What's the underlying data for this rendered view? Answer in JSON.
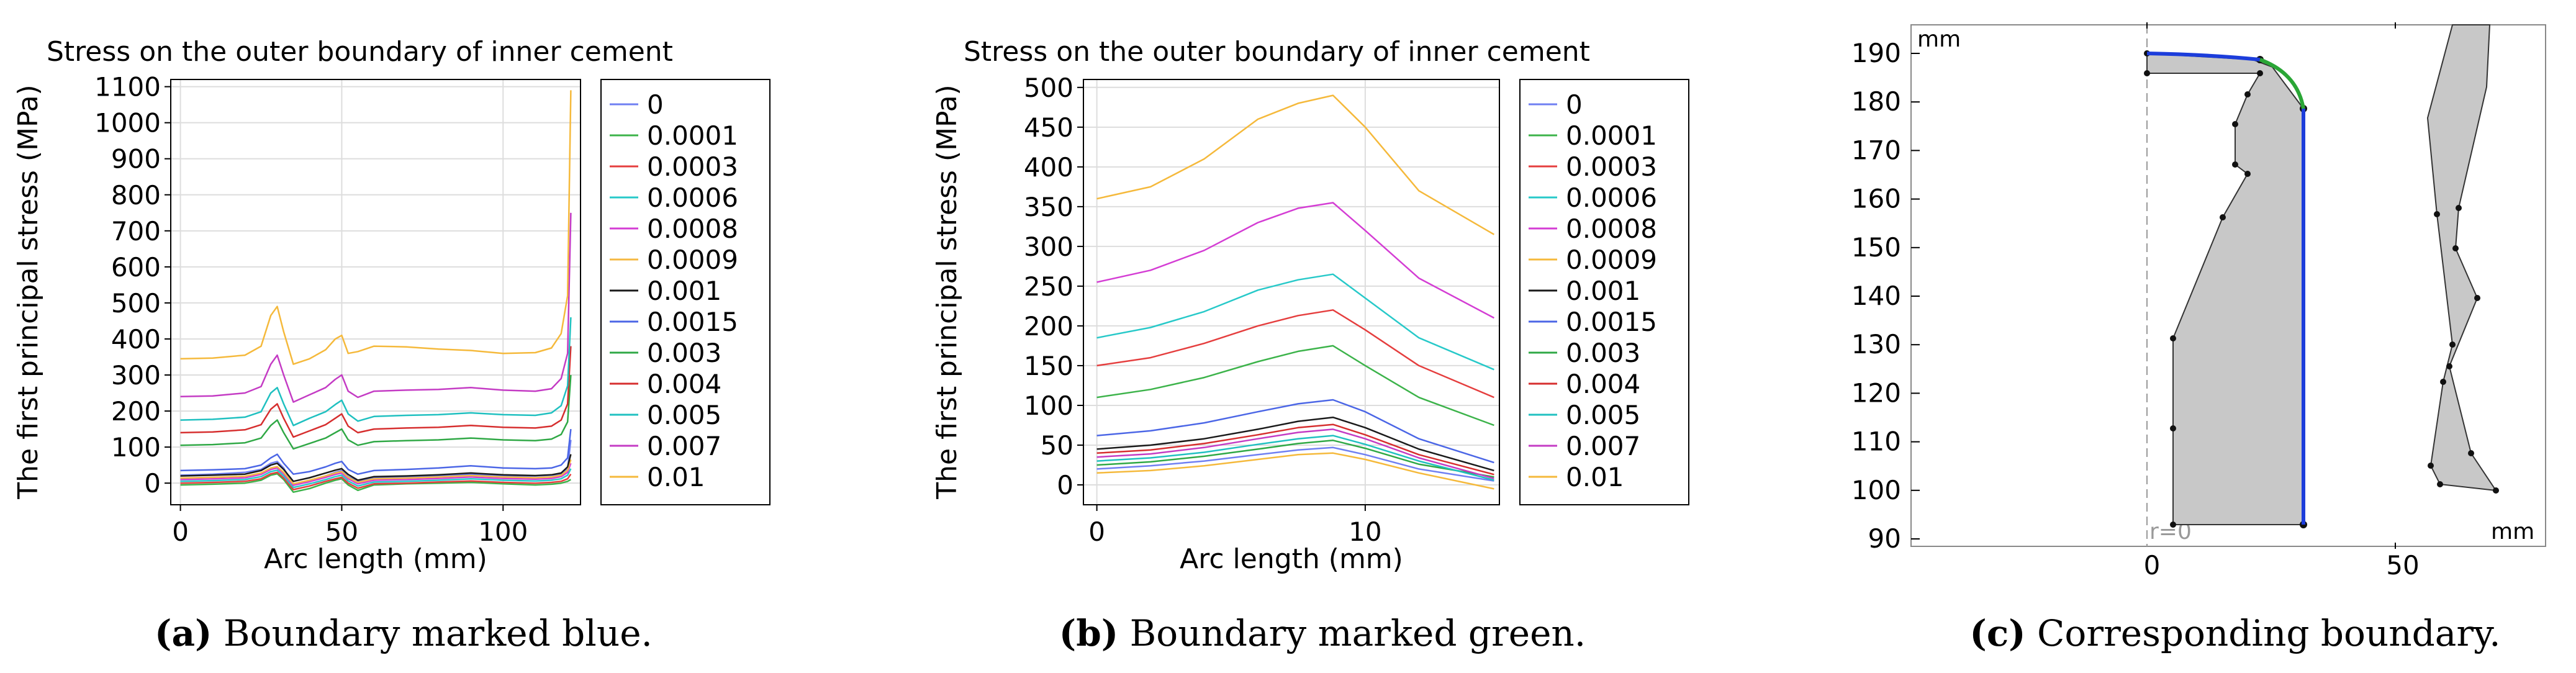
{
  "chart_data": [
    {
      "type": "line",
      "title": "Stress on the outer boundary of inner cement",
      "xlabel": "Arc length (mm)",
      "ylabel": "The first principal stress (MPa)",
      "xlim": [
        -3,
        124
      ],
      "ylim": [
        -60,
        1120
      ],
      "xticks": [
        0,
        50,
        100
      ],
      "yticks": [
        0,
        100,
        200,
        300,
        400,
        500,
        600,
        700,
        800,
        900,
        1000,
        1100
      ],
      "grid": true,
      "legend_position": "right",
      "x": [
        0,
        10,
        20,
        25,
        28,
        30,
        32,
        35,
        40,
        45,
        48,
        50,
        52,
        55,
        60,
        70,
        80,
        90,
        100,
        110,
        115,
        118,
        120,
        121
      ],
      "series": [
        {
          "name": "0",
          "color": "#6f7ff2",
          "values": [
            22,
            25,
            30,
            38,
            55,
            60,
            42,
            -5,
            5,
            20,
            30,
            35,
            18,
            5,
            15,
            18,
            20,
            25,
            20,
            20,
            22,
            25,
            40,
            120
          ]
        },
        {
          "name": "0.0001",
          "color": "#3cb34a",
          "values": [
            -5,
            -3,
            0,
            8,
            22,
            26,
            10,
            -25,
            -15,
            0,
            8,
            12,
            -5,
            -20,
            -5,
            -2,
            0,
            2,
            -2,
            -5,
            -3,
            0,
            5,
            10
          ]
        },
        {
          "name": "0.0003",
          "color": "#e53e3e",
          "values": [
            0,
            2,
            5,
            12,
            26,
            30,
            14,
            -18,
            -8,
            5,
            12,
            16,
            0,
            -14,
            -2,
            0,
            3,
            6,
            2,
            0,
            2,
            5,
            12,
            25
          ]
        },
        {
          "name": "0.0006",
          "color": "#27c9c9",
          "values": [
            5,
            7,
            10,
            18,
            32,
            36,
            20,
            -12,
            -2,
            10,
            18,
            22,
            6,
            -8,
            3,
            5,
            8,
            12,
            8,
            6,
            8,
            12,
            22,
            40
          ]
        },
        {
          "name": "0.0008",
          "color": "#d43dd4",
          "values": [
            10,
            12,
            15,
            24,
            38,
            42,
            26,
            -6,
            4,
            16,
            24,
            28,
            12,
            -2,
            8,
            10,
            13,
            17,
            13,
            11,
            13,
            18,
            30,
            55
          ]
        },
        {
          "name": "0.0009",
          "color": "#f4b842",
          "values": [
            14,
            16,
            19,
            28,
            42,
            46,
            30,
            -2,
            8,
            20,
            28,
            32,
            16,
            2,
            12,
            14,
            17,
            21,
            17,
            15,
            17,
            22,
            36,
            65
          ]
        },
        {
          "name": "0.001",
          "color": "#1a1a1a",
          "values": [
            20,
            22,
            25,
            35,
            50,
            55,
            38,
            5,
            15,
            28,
            36,
            40,
            24,
            8,
            18,
            20,
            23,
            28,
            23,
            21,
            23,
            28,
            45,
            80
          ]
        },
        {
          "name": "0.0015",
          "color": "#4b66e6",
          "values": [
            35,
            37,
            40,
            50,
            70,
            80,
            55,
            25,
            32,
            45,
            55,
            60,
            38,
            25,
            35,
            38,
            42,
            48,
            42,
            40,
            42,
            50,
            70,
            150
          ]
        },
        {
          "name": "0.003",
          "color": "#2fa845",
          "values": [
            105,
            107,
            112,
            125,
            160,
            175,
            140,
            95,
            110,
            125,
            140,
            150,
            120,
            105,
            115,
            118,
            120,
            125,
            120,
            118,
            122,
            135,
            170,
            300
          ]
        },
        {
          "name": "0.004",
          "color": "#d62e2e",
          "values": [
            140,
            142,
            148,
            162,
            205,
            220,
            180,
            128,
            145,
            162,
            180,
            192,
            158,
            140,
            150,
            153,
            155,
            160,
            155,
            153,
            158,
            175,
            220,
            380
          ]
        },
        {
          "name": "0.005",
          "color": "#1fc0c0",
          "values": [
            175,
            177,
            183,
            198,
            250,
            265,
            220,
            160,
            180,
            198,
            218,
            230,
            192,
            172,
            185,
            188,
            190,
            195,
            190,
            188,
            195,
            215,
            270,
            460
          ]
        },
        {
          "name": "0.007",
          "color": "#c43bc4",
          "values": [
            240,
            242,
            250,
            268,
            330,
            355,
            300,
            225,
            245,
            265,
            288,
            300,
            255,
            238,
            255,
            258,
            260,
            265,
            258,
            255,
            262,
            290,
            360,
            750
          ]
        },
        {
          "name": "0.01",
          "color": "#f5b93b",
          "values": [
            345,
            347,
            355,
            380,
            465,
            490,
            420,
            330,
            345,
            370,
            400,
            410,
            360,
            365,
            380,
            378,
            372,
            368,
            360,
            362,
            375,
            415,
            520,
            1090
          ]
        }
      ]
    },
    {
      "type": "line",
      "title": "Stress on the outer boundary of inner cement",
      "xlabel": "Arc length (mm)",
      "ylabel": "The first principal stress (MPa)",
      "xlim": [
        -0.5,
        15
      ],
      "ylim": [
        -25,
        510
      ],
      "xticks": [
        0,
        10
      ],
      "yticks": [
        0,
        50,
        100,
        150,
        200,
        250,
        300,
        350,
        400,
        450,
        500
      ],
      "grid": true,
      "legend_position": "right",
      "x": [
        0,
        2,
        4,
        6,
        7.5,
        8.8,
        10,
        12,
        14.8
      ],
      "series": [
        {
          "name": "0",
          "color": "#6f7ff2",
          "values": [
            20,
            24,
            30,
            38,
            44,
            47,
            38,
            20,
            5
          ]
        },
        {
          "name": "0.0001",
          "color": "#3cb34a",
          "values": [
            110,
            120,
            135,
            155,
            168,
            175,
            150,
            110,
            75
          ]
        },
        {
          "name": "0.0003",
          "color": "#e53e3e",
          "values": [
            150,
            160,
            178,
            200,
            213,
            220,
            195,
            150,
            110
          ]
        },
        {
          "name": "0.0006",
          "color": "#27c9c9",
          "values": [
            185,
            198,
            218,
            245,
            258,
            265,
            235,
            185,
            145
          ]
        },
        {
          "name": "0.0008",
          "color": "#d43dd4",
          "values": [
            255,
            270,
            295,
            330,
            348,
            355,
            320,
            260,
            210
          ]
        },
        {
          "name": "0.0009",
          "color": "#f5b93b",
          "values": [
            360,
            375,
            410,
            460,
            480,
            490,
            450,
            370,
            315
          ]
        },
        {
          "name": "0.001",
          "color": "#1a1a1a",
          "values": [
            45,
            50,
            58,
            70,
            80,
            85,
            72,
            45,
            18
          ]
        },
        {
          "name": "0.0015",
          "color": "#4b66e6",
          "values": [
            62,
            68,
            78,
            92,
            102,
            107,
            92,
            58,
            28
          ]
        },
        {
          "name": "0.003",
          "color": "#2fa845",
          "values": [
            25,
            29,
            36,
            45,
            52,
            56,
            46,
            26,
            10
          ]
        },
        {
          "name": "0.004",
          "color": "#d62e2e",
          "values": [
            40,
            44,
            52,
            63,
            72,
            76,
            63,
            38,
            13
          ]
        },
        {
          "name": "0.005",
          "color": "#1fc0c0",
          "values": [
            30,
            34,
            41,
            51,
            58,
            62,
            51,
            30,
            6
          ]
        },
        {
          "name": "0.007",
          "color": "#c43bc4",
          "values": [
            35,
            39,
            47,
            58,
            66,
            70,
            58,
            34,
            8
          ]
        },
        {
          "name": "0.01",
          "color": "#f5b93b",
          "values": [
            15,
            18,
            24,
            32,
            38,
            40,
            32,
            15,
            -5
          ]
        }
      ]
    }
  ],
  "panel_c": {
    "yunit": "mm",
    "xunit": "mm",
    "yticks": [
      "90",
      "100",
      "110",
      "120",
      "130",
      "140",
      "150",
      "160",
      "170",
      "180",
      "190"
    ],
    "xticks": [
      "0",
      "50"
    ],
    "axis_label": "r=0",
    "boundary_blue_color": "#1c3ddb",
    "boundary_green_color": "#2aa636",
    "fill_color": "#c8c8c8"
  },
  "captions": {
    "a": {
      "letter": "(a)",
      "text": " Boundary marked blue."
    },
    "b": {
      "letter": "(b)",
      "text": " Boundary marked green."
    },
    "c": {
      "letter": "(c)",
      "text": " Corresponding boundary."
    }
  }
}
